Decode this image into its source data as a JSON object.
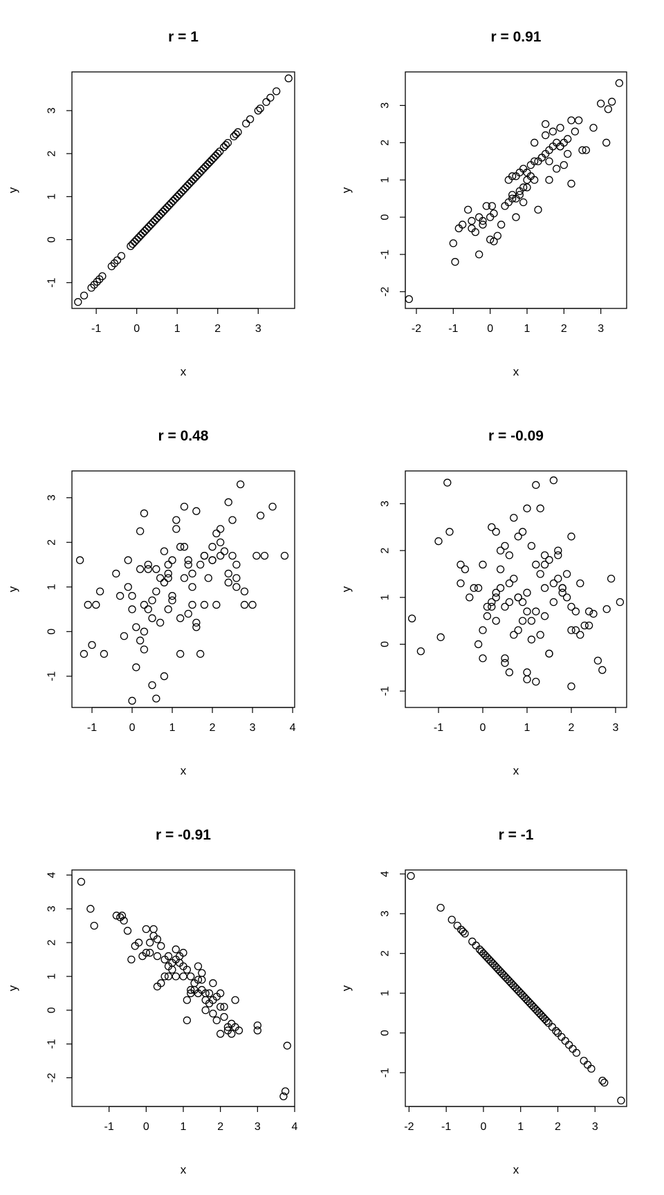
{
  "chart_data": [
    {
      "type": "scatter",
      "title": "r =  1",
      "xlabel": "x",
      "ylabel": "y",
      "xlim": [
        -1.6,
        3.9
      ],
      "ylim": [
        -1.6,
        3.9
      ],
      "xticks": [
        -1,
        0,
        1,
        2,
        3
      ],
      "yticks": [
        -1,
        0,
        1,
        2,
        3
      ],
      "xticklabels": [
        "-1",
        "0",
        "1",
        "2",
        "3"
      ],
      "yticklabels": [
        "-1",
        "0",
        "1",
        "2",
        "3"
      ],
      "grid": false,
      "x": [
        -1.45,
        -1.3,
        -1.12,
        -1.05,
        -0.98,
        -0.92,
        -0.85,
        -0.62,
        -0.55,
        -0.48,
        -0.38,
        -0.15,
        -0.1,
        -0.05,
        0.0,
        0.05,
        0.1,
        0.15,
        0.2,
        0.25,
        0.3,
        0.35,
        0.4,
        0.45,
        0.5,
        0.55,
        0.6,
        0.65,
        0.7,
        0.75,
        0.8,
        0.85,
        0.9,
        0.95,
        1.0,
        1.05,
        1.1,
        1.15,
        1.2,
        1.25,
        1.3,
        1.35,
        1.4,
        1.45,
        1.5,
        1.55,
        1.6,
        1.65,
        1.7,
        1.75,
        1.8,
        1.85,
        1.9,
        1.95,
        2.0,
        2.05,
        2.15,
        2.2,
        2.25,
        2.4,
        2.45,
        2.5,
        2.7,
        2.8,
        3.0,
        3.05,
        3.2,
        3.3,
        3.45,
        3.75
      ],
      "y": [
        -1.45,
        -1.3,
        -1.12,
        -1.05,
        -0.98,
        -0.92,
        -0.85,
        -0.62,
        -0.55,
        -0.48,
        -0.38,
        -0.15,
        -0.1,
        -0.05,
        0.0,
        0.05,
        0.1,
        0.15,
        0.2,
        0.25,
        0.3,
        0.35,
        0.4,
        0.45,
        0.5,
        0.55,
        0.6,
        0.65,
        0.7,
        0.75,
        0.8,
        0.85,
        0.9,
        0.95,
        1.0,
        1.05,
        1.1,
        1.15,
        1.2,
        1.25,
        1.3,
        1.35,
        1.4,
        1.45,
        1.5,
        1.55,
        1.6,
        1.65,
        1.7,
        1.75,
        1.8,
        1.85,
        1.9,
        1.95,
        2.0,
        2.05,
        2.15,
        2.2,
        2.25,
        2.4,
        2.45,
        2.5,
        2.7,
        2.8,
        3.0,
        3.05,
        3.2,
        3.3,
        3.45,
        3.75
      ]
    },
    {
      "type": "scatter",
      "title": "r =  0.91",
      "xlabel": "x",
      "ylabel": "y",
      "xlim": [
        -2.3,
        3.7
      ],
      "ylim": [
        -2.45,
        3.9
      ],
      "xticks": [
        -2,
        -1,
        0,
        1,
        2,
        3
      ],
      "yticks": [
        -2,
        -1,
        0,
        1,
        2,
        3
      ],
      "xticklabels": [
        "-2",
        "-1",
        "0",
        "1",
        "2",
        "3"
      ],
      "yticklabels": [
        "-2",
        "-1",
        "0",
        "1",
        "2",
        "3"
      ],
      "grid": false,
      "x": [
        -2.2,
        -0.95,
        -1.0,
        -0.85,
        -0.75,
        -0.6,
        -0.5,
        -0.4,
        -0.3,
        -0.2,
        -0.1,
        0.0,
        0.05,
        0.1,
        -0.3,
        0.0,
        0.1,
        0.4,
        0.5,
        0.6,
        0.7,
        0.8,
        0.9,
        1.0,
        0.5,
        0.6,
        0.7,
        0.8,
        0.9,
        1.0,
        1.1,
        1.2,
        1.3,
        1.4,
        1.5,
        1.6,
        1.7,
        1.8,
        1.9,
        2.0,
        2.1,
        2.2,
        2.3,
        2.5,
        2.6,
        2.8,
        3.0,
        3.15,
        3.3,
        3.5,
        1.2,
        1.5,
        1.7,
        1.9,
        2.0,
        2.2,
        0.6,
        0.9,
        1.3,
        1.6,
        2.1,
        1.0,
        1.1,
        1.4,
        1.8,
        0.3,
        -0.5,
        0.7,
        1.5,
        2.4,
        3.2,
        -0.2,
        0.2,
        1.9,
        1.6,
        1.2,
        0.8
      ],
      "y": [
        -2.2,
        -1.2,
        -0.7,
        -0.3,
        -0.2,
        0.2,
        -0.3,
        -0.4,
        -1.0,
        -0.1,
        0.3,
        -0.6,
        0.3,
        -0.65,
        0.0,
        0.0,
        0.1,
        0.3,
        0.4,
        0.5,
        0.5,
        0.6,
        0.8,
        1.0,
        1.0,
        1.1,
        1.1,
        1.2,
        1.3,
        1.2,
        1.4,
        1.5,
        1.5,
        1.6,
        1.7,
        1.8,
        1.9,
        2.0,
        1.9,
        2.0,
        2.1,
        2.6,
        2.3,
        1.8,
        1.8,
        2.4,
        3.05,
        2.0,
        3.1,
        3.6,
        2.0,
        2.2,
        2.3,
        2.4,
        1.4,
        0.9,
        0.6,
        0.4,
        0.2,
        1.0,
        1.7,
        0.8,
        1.1,
        1.6,
        1.3,
        -0.2,
        -0.1,
        0.0,
        2.5,
        2.6,
        2.9,
        -0.2,
        -0.5,
        1.9,
        1.5,
        1.0,
        0.7
      ]
    },
    {
      "type": "scatter",
      "title": "r =  0.48",
      "xlabel": "x",
      "ylabel": "y",
      "xlim": [
        -1.5,
        4.05
      ],
      "ylim": [
        -1.7,
        3.6
      ],
      "xticks": [
        -1,
        0,
        1,
        2,
        3,
        4
      ],
      "yticks": [
        -1,
        0,
        1,
        2,
        3
      ],
      "xticklabels": [
        "-1",
        "0",
        "1",
        "2",
        "3",
        "4"
      ],
      "yticklabels": [
        "-1",
        "0",
        "1",
        "2",
        "3"
      ],
      "grid": false,
      "x": [
        -1.3,
        -1.2,
        -1.1,
        -1.0,
        -0.9,
        -0.8,
        -0.7,
        -0.4,
        -0.3,
        -0.2,
        -0.1,
        0.0,
        0.0,
        0.1,
        0.2,
        0.3,
        0.3,
        0.4,
        0.5,
        0.6,
        0.7,
        0.8,
        0.9,
        1.0,
        1.1,
        1.2,
        1.3,
        1.4,
        1.5,
        1.6,
        1.7,
        1.8,
        1.9,
        2.0,
        2.1,
        2.2,
        2.3,
        2.4,
        2.5,
        2.6,
        2.7,
        2.8,
        3.0,
        3.1,
        3.2,
        3.3,
        3.5,
        3.8,
        -0.1,
        0.2,
        0.4,
        0.6,
        0.8,
        1.0,
        1.2,
        1.4,
        1.6,
        1.8,
        2.0,
        2.2,
        2.4,
        2.6,
        0.0,
        0.3,
        0.5,
        0.7,
        0.9,
        1.1,
        1.3,
        1.5,
        0.1,
        0.5,
        0.9,
        1.3,
        1.7,
        2.1,
        2.5,
        0.2,
        0.6,
        1.0,
        1.4,
        1.8,
        2.2,
        2.6,
        0.4,
        0.8,
        1.2,
        1.6,
        2.0,
        2.4,
        2.8,
        0.3,
        0.9,
        1.5
      ],
      "y": [
        1.6,
        -0.5,
        0.6,
        -0.3,
        0.6,
        0.9,
        -0.5,
        1.3,
        0.8,
        -0.1,
        1.6,
        0.5,
        -1.55,
        0.1,
        2.25,
        2.65,
        0.6,
        0.5,
        -1.2,
        -1.5,
        1.2,
        1.8,
        0.5,
        0.8,
        2.5,
        1.9,
        2.8,
        1.6,
        1.3,
        2.7,
        1.5,
        1.7,
        1.2,
        1.6,
        2.2,
        2.3,
        1.8,
        1.1,
        1.7,
        1.5,
        3.3,
        0.6,
        0.6,
        1.7,
        2.6,
        1.7,
        2.8,
        1.7,
        1.0,
        1.4,
        1.5,
        0.9,
        1.1,
        1.6,
        0.3,
        1.5,
        0.2,
        0.6,
        1.9,
        1.7,
        2.9,
        1.2,
        0.8,
        -0.4,
        0.7,
        0.2,
        1.3,
        2.3,
        1.9,
        1.0,
        -0.8,
        0.3,
        1.2,
        1.2,
        -0.5,
        0.6,
        2.5,
        -0.2,
        1.4,
        0.7,
        0.4,
        1.7,
        2.0,
        1.0,
        1.4,
        -1.0,
        -0.5,
        0.1,
        1.6,
        1.3,
        0.9,
        0.0,
        1.5,
        0.6
      ]
    },
    {
      "type": "scatter",
      "title": "r =  -0.09",
      "xlabel": "x",
      "ylabel": "y",
      "xlim": [
        -1.75,
        3.25
      ],
      "ylim": [
        -1.35,
        3.7
      ],
      "xticks": [
        -1,
        0,
        1,
        2,
        3
      ],
      "yticks": [
        -1,
        0,
        1,
        2,
        3
      ],
      "xticklabels": [
        "-1",
        "0",
        "1",
        "2",
        "3"
      ],
      "yticklabels": [
        "-1",
        "0",
        "1",
        "2",
        "3"
      ],
      "grid": false,
      "x": [
        -1.6,
        -1.4,
        -1.0,
        -0.95,
        -0.8,
        -0.75,
        -0.5,
        -0.4,
        -0.2,
        -0.1,
        0.0,
        0.0,
        0.1,
        0.2,
        0.3,
        0.3,
        0.4,
        0.5,
        0.5,
        0.6,
        0.7,
        0.8,
        0.9,
        1.0,
        1.0,
        1.1,
        1.2,
        1.3,
        1.4,
        1.5,
        1.6,
        1.7,
        1.8,
        1.9,
        2.0,
        2.0,
        2.1,
        2.2,
        2.3,
        2.4,
        2.5,
        2.6,
        2.7,
        2.8,
        2.9,
        3.1,
        -0.3,
        -0.1,
        0.2,
        0.4,
        0.6,
        0.8,
        1.0,
        1.2,
        1.4,
        1.6,
        1.8,
        2.0,
        -0.5,
        0.1,
        0.3,
        0.5,
        0.7,
        0.9,
        1.1,
        1.3,
        1.5,
        1.7,
        1.9,
        2.1,
        0.0,
        0.4,
        0.8,
        1.2,
        1.6,
        2.0,
        2.4,
        0.2,
        0.6,
        1.0,
        1.4,
        1.8,
        2.2,
        0.5,
        0.9,
        1.3,
        1.7,
        0.3,
        0.7,
        1.1,
        1.5,
        0.6,
        1.0,
        1.4,
        0.8,
        1.2
      ],
      "y": [
        0.55,
        -0.15,
        2.2,
        0.15,
        3.45,
        2.4,
        1.7,
        1.6,
        1.2,
        1.2,
        0.3,
        -0.3,
        0.8,
        2.5,
        1.1,
        2.4,
        1.6,
        2.1,
        -0.3,
        -0.6,
        2.7,
        1.0,
        2.4,
        2.9,
        -0.6,
        0.5,
        3.4,
        2.9,
        1.7,
        -0.2,
        3.5,
        1.9,
        1.2,
        1.0,
        0.3,
        -0.9,
        0.7,
        1.3,
        0.4,
        0.7,
        0.65,
        -0.35,
        -0.55,
        0.75,
        1.4,
        0.9,
        1.0,
        0.0,
        0.9,
        1.2,
        1.3,
        0.3,
        0.7,
        1.7,
        1.2,
        0.9,
        1.1,
        0.8,
        1.3,
        0.6,
        1.0,
        0.8,
        1.4,
        0.5,
        2.1,
        0.2,
        1.8,
        1.4,
        1.5,
        0.3,
        1.7,
        2.0,
        1.0,
        0.7,
        1.3,
        2.3,
        0.4,
        0.8,
        1.9,
        1.1,
        0.6,
        1.2,
        0.2,
        -0.4,
        0.9,
        1.5,
        2.0,
        0.5,
        0.2,
        0.1,
        -0.2,
        0.9,
        -0.75,
        1.9,
        2.3,
        -0.8
      ]
    },
    {
      "type": "scatter",
      "title": "r =  -0.91",
      "xlabel": "x",
      "ylabel": "y",
      "xlim": [
        -2.0,
        4.0
      ],
      "ylim": [
        -2.85,
        4.15
      ],
      "xticks": [
        -1,
        0,
        1,
        2,
        3,
        4
      ],
      "yticks": [
        -2,
        -1,
        0,
        1,
        2,
        3,
        4
      ],
      "xticklabels": [
        "-1",
        "0",
        "1",
        "2",
        "3",
        "4"
      ],
      "yticklabels": [
        "-2",
        "-1",
        "0",
        "1",
        "2",
        "3",
        "4"
      ],
      "grid": false,
      "x": [
        -1.75,
        -1.5,
        -1.4,
        -0.8,
        -0.7,
        -0.65,
        -0.6,
        -0.5,
        -0.4,
        -0.3,
        -0.2,
        -0.1,
        0.0,
        0.1,
        0.2,
        0.3,
        0.3,
        0.4,
        0.5,
        0.6,
        0.7,
        0.8,
        0.9,
        1.0,
        1.1,
        1.2,
        1.3,
        1.4,
        1.5,
        1.6,
        1.7,
        1.8,
        1.9,
        2.0,
        2.1,
        2.2,
        2.3,
        2.4,
        2.5,
        3.0,
        3.0,
        3.7,
        3.75,
        3.8,
        0.0,
        0.2,
        0.4,
        0.6,
        0.8,
        1.0,
        1.2,
        1.4,
        1.6,
        1.8,
        2.0,
        2.2,
        2.4,
        0.1,
        0.5,
        0.9,
        1.3,
        1.7,
        2.1,
        0.3,
        0.7,
        1.1,
        1.5,
        1.9,
        2.3,
        0.6,
        1.0,
        1.4,
        1.8,
        0.8,
        1.2,
        1.6,
        2.0,
        1.1,
        1.5
      ],
      "y": [
        3.8,
        3.0,
        2.5,
        2.8,
        2.75,
        2.8,
        2.65,
        2.35,
        1.5,
        1.9,
        2.0,
        1.6,
        2.4,
        2.0,
        2.4,
        1.6,
        0.7,
        0.8,
        1.5,
        1.6,
        1.2,
        1.8,
        1.4,
        1.0,
        1.2,
        0.6,
        0.8,
        0.5,
        0.9,
        0.5,
        0.2,
        0.3,
        0.4,
        -0.7,
        -0.2,
        -0.6,
        -0.7,
        -0.5,
        -0.6,
        -0.45,
        -0.6,
        -2.55,
        -2.4,
        -1.05,
        1.7,
        2.2,
        1.9,
        1.3,
        1.0,
        1.3,
        0.5,
        0.9,
        0.3,
        -0.1,
        0.5,
        -0.5,
        0.3,
        1.7,
        1.0,
        1.6,
        0.6,
        0.5,
        0.1,
        2.1,
        1.4,
        0.3,
        0.6,
        -0.3,
        -0.4,
        1.0,
        1.7,
        1.3,
        0.8,
        1.5,
        1.0,
        0.0,
        0.1,
        -0.3,
        1.1
      ]
    },
    {
      "type": "scatter",
      "title": "r =  -1",
      "xlabel": "x",
      "ylabel": "y",
      "xlim": [
        -2.1,
        3.85
      ],
      "ylim": [
        -1.85,
        4.1
      ],
      "xticks": [
        -2,
        -1,
        0,
        1,
        2,
        3
      ],
      "yticks": [
        -1,
        0,
        1,
        2,
        3,
        4
      ],
      "xticklabels": [
        "-2",
        "-1",
        "0",
        "1",
        "2",
        "3"
      ],
      "yticklabels": [
        "-1",
        "0",
        "1",
        "2",
        "3",
        "4"
      ],
      "grid": false,
      "x": [
        -1.95,
        -1.15,
        -0.85,
        -0.7,
        -0.6,
        -0.55,
        -0.5,
        -0.3,
        -0.2,
        -0.1,
        -0.05,
        0.0,
        0.05,
        0.1,
        0.15,
        0.2,
        0.25,
        0.3,
        0.35,
        0.4,
        0.45,
        0.5,
        0.55,
        0.6,
        0.65,
        0.7,
        0.75,
        0.8,
        0.85,
        0.9,
        0.95,
        1.0,
        1.05,
        1.1,
        1.15,
        1.2,
        1.25,
        1.3,
        1.35,
        1.4,
        1.45,
        1.5,
        1.55,
        1.6,
        1.65,
        1.7,
        1.75,
        1.85,
        1.95,
        2.0,
        2.1,
        2.2,
        2.3,
        2.4,
        2.5,
        2.7,
        2.8,
        2.9,
        3.2,
        3.25,
        3.7
      ],
      "y": [
        3.95,
        3.15,
        2.85,
        2.7,
        2.6,
        2.55,
        2.5,
        2.3,
        2.2,
        2.1,
        2.05,
        2.0,
        1.95,
        1.9,
        1.85,
        1.8,
        1.75,
        1.7,
        1.65,
        1.6,
        1.55,
        1.5,
        1.45,
        1.4,
        1.35,
        1.3,
        1.25,
        1.2,
        1.15,
        1.1,
        1.05,
        1.0,
        0.95,
        0.9,
        0.85,
        0.8,
        0.75,
        0.7,
        0.65,
        0.6,
        0.55,
        0.5,
        0.45,
        0.4,
        0.35,
        0.3,
        0.25,
        0.15,
        0.05,
        0.0,
        -0.1,
        -0.2,
        -0.3,
        -0.4,
        -0.5,
        -0.7,
        -0.8,
        -0.9,
        -1.2,
        -1.25,
        -1.7
      ]
    }
  ]
}
